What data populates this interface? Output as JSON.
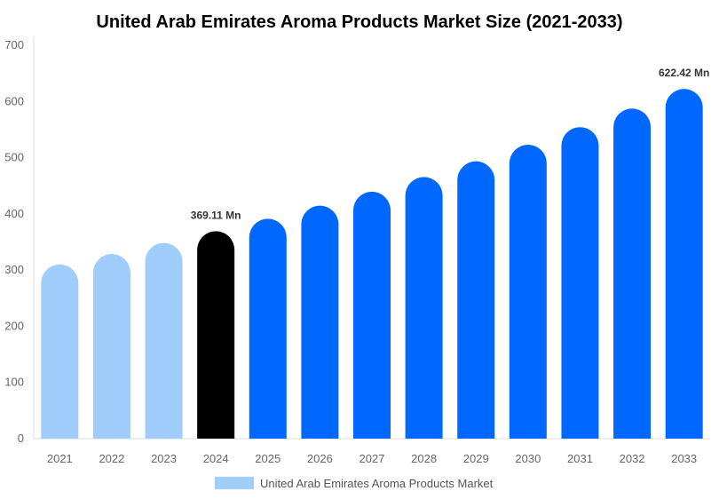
{
  "chart_data": {
    "type": "bar",
    "title": "United Arab Emirates Aroma Products Market Size (2021-2033)",
    "xlabel": "",
    "ylabel": "",
    "ylim": [
      0,
      700
    ],
    "yticks": [
      0,
      100,
      200,
      300,
      400,
      500,
      600,
      700
    ],
    "grid": false,
    "legend_position": "bottom",
    "categories": [
      "2021",
      "2022",
      "2023",
      "2024",
      "2025",
      "2026",
      "2027",
      "2028",
      "2029",
      "2030",
      "2031",
      "2032",
      "2033"
    ],
    "series": [
      {
        "name": "United Arab Emirates Aroma Products Market",
        "values": [
          310.0,
          328.6,
          348.3,
          369.11,
          391.2,
          414.6,
          439.4,
          465.6,
          493.5,
          523.0,
          554.3,
          587.4,
          622.42
        ]
      }
    ],
    "bar_colors": [
      "#a1cdfc",
      "#a1cdfc",
      "#a1cdfc",
      "#000000",
      "#0068ff",
      "#0068ff",
      "#0068ff",
      "#0068ff",
      "#0068ff",
      "#0068ff",
      "#0068ff",
      "#0068ff",
      "#0068ff"
    ],
    "legend_color": "#a1cdfc",
    "data_labels": [
      {
        "category": "2024",
        "text": "369.11 Mn"
      },
      {
        "category": "2033",
        "text": "622.42 Mn"
      }
    ]
  }
}
